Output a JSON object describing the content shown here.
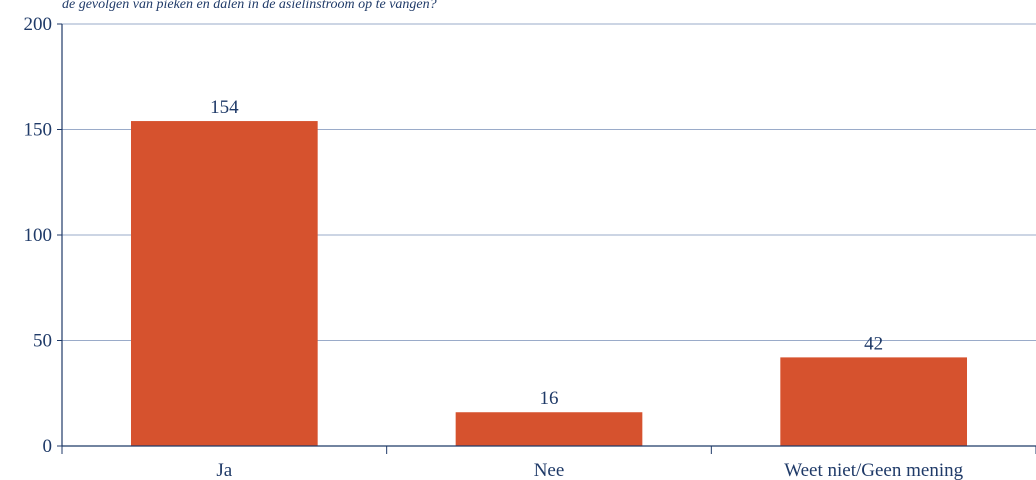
{
  "chart_data": {
    "type": "bar",
    "title": "de gevolgen van pieken en dalen in de asielinstroom op te vangen?",
    "categories": [
      "Ja",
      "Nee",
      "Weet niet/Geen mening"
    ],
    "values": [
      154,
      16,
      42
    ],
    "data_labels": [
      "154",
      "16",
      "42"
    ],
    "ylim": [
      0,
      200
    ],
    "yticks": [
      0,
      50,
      100,
      150,
      200
    ],
    "xlabel": "",
    "ylabel": "",
    "grid": "horizontal",
    "legend": "none",
    "colors": {
      "bar": "#d6522e",
      "grid": "#9aabc9",
      "axis": "#1f3a68",
      "text": "#1f3a68"
    }
  }
}
